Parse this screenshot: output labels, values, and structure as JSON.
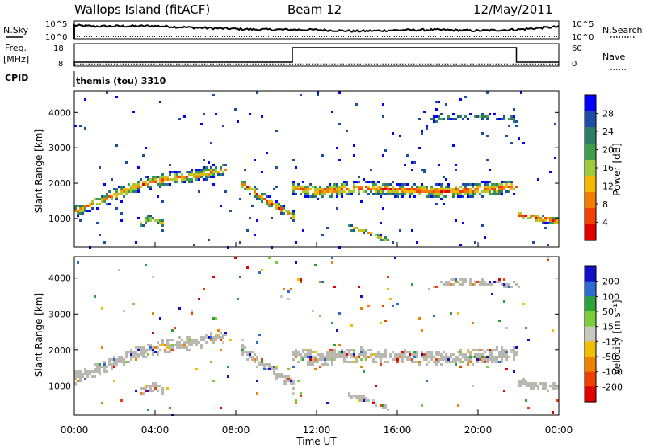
{
  "header": {
    "station": "Wallops Island (fitACF)",
    "beam": "Beam 12",
    "date": "12/May/2011"
  },
  "side_labels": {
    "nsky": "N.Sky",
    "nsearch": "N.Search",
    "freq_line1": "Freq.",
    "freq_line2": "[MHz]",
    "nave": "Nave",
    "cpid": "CPID"
  },
  "colors": {
    "power": [
      "#0000ff",
      "#1c4ea6",
      "#2e7d67",
      "#3f9e4d",
      "#9ecb3a",
      "#f4b800",
      "#f37d00",
      "#f24000",
      "#e00000"
    ],
    "velocity": [
      "#1010c8",
      "#2c6cd0",
      "#2ea23a",
      "#7dcc3a",
      "#c8c8c0",
      "#f0c000",
      "#f08000",
      "#f04000",
      "#e00000"
    ],
    "ground_scatter": "#b8b8b0"
  },
  "chart_data": [
    {
      "type": "line",
      "name": "noise_panel",
      "x": [
        0,
        1,
        4,
        6,
        9,
        12,
        14,
        16,
        18,
        20,
        22,
        24
      ],
      "y_left_label_top": "10^5",
      "y_left_label_bottom": "10^0",
      "y_right_label_top": "10^5",
      "y_right_label_bottom": "10^0",
      "sky_level": [
        0.75,
        0.7,
        0.72,
        0.62,
        0.52,
        0.5,
        0.42,
        0.48,
        0.5,
        0.45,
        0.52,
        0.68
      ],
      "search_level": [
        0.12,
        0.12,
        0.12,
        0.12,
        0.12,
        0.12,
        0.12,
        0.12,
        0.12,
        0.12,
        0.12,
        0.12
      ]
    },
    {
      "type": "line",
      "name": "freq_nave_panel",
      "left_ticks": [
        "18",
        "8"
      ],
      "right_ticks": [
        "60",
        "0"
      ],
      "freq_segments": [
        {
          "x0": 0,
          "x1": 10.8,
          "level": 0.18
        },
        {
          "x0": 10.8,
          "x1": 21.9,
          "level": 0.82
        },
        {
          "x0": 21.9,
          "x1": 24,
          "level": 0.18
        }
      ],
      "nave_level": 0.1
    },
    {
      "type": "heatmap",
      "name": "power_panel",
      "cpid": "themis (tou) 3310",
      "ylabel": "Slant Range [km]",
      "yticks": [
        "1000",
        "2000",
        "3000",
        "4000"
      ],
      "colorbar_label": "Power [dB]",
      "colorbar_ticks": [
        "28",
        "24",
        "20",
        "16",
        "12",
        "8",
        "4"
      ],
      "bands": [
        {
          "x": [
            0,
            1.5,
            3,
            4.5,
            6,
            7.5
          ],
          "y": [
            1250,
            1600,
            1950,
            2150,
            2250,
            2450
          ],
          "width": 380,
          "intensity": 0.75
        },
        {
          "x": [
            3.2,
            3.6,
            4.0,
            4.4
          ],
          "y": [
            880,
            1020,
            1000,
            870
          ],
          "width": 260,
          "intensity": 0.6
        },
        {
          "x": [
            8.2,
            9.2,
            10.0,
            10.8
          ],
          "y": [
            2050,
            1650,
            1350,
            1100
          ],
          "width": 330,
          "intensity": 0.8
        },
        {
          "x": [
            10.8,
            12,
            14,
            16,
            18,
            20,
            21.9
          ],
          "y": [
            1900,
            1800,
            1900,
            1850,
            1800,
            1850,
            1950
          ],
          "width": 430,
          "intensity": 0.8
        },
        {
          "x": [
            13.5,
            14.5,
            15.5
          ],
          "y": [
            800,
            650,
            400
          ],
          "width": 160,
          "intensity": 0.7
        },
        {
          "x": [
            21.9,
            22.8,
            24
          ],
          "y": [
            1150,
            1050,
            950
          ],
          "width": 260,
          "intensity": 0.9
        },
        {
          "x": [
            17.5,
            19,
            21,
            22
          ],
          "y": [
            3800,
            3950,
            3900,
            3800
          ],
          "width": 200,
          "intensity": 0.35
        }
      ]
    },
    {
      "type": "heatmap",
      "name": "velocity_panel",
      "ylabel": "Slant Range [km]",
      "yticks": [
        "1000",
        "2000",
        "3000",
        "4000"
      ],
      "colorbar_label": "Velocity [m s⁻¹]",
      "colorbar_ticks": [
        "200",
        "100",
        "50",
        "15",
        "-15",
        "-50",
        "-100",
        "-200"
      ],
      "xlabel": "Time UT",
      "xticks": [
        "00:00",
        "04:00",
        "08:00",
        "12:00",
        "16:00",
        "20:00",
        "00:00"
      ],
      "xrange_hours": [
        0,
        24
      ],
      "yrange_km": [
        200,
        4600
      ]
    }
  ]
}
